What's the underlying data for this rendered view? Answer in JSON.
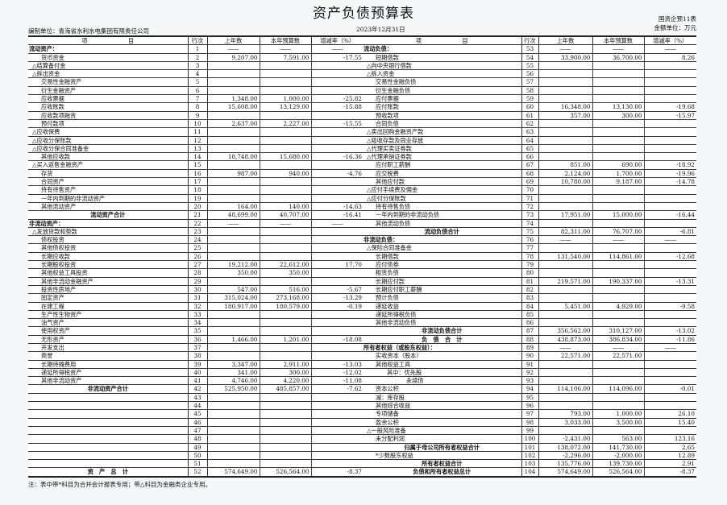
{
  "title": "资产负债预算表",
  "org": "编制单位：青海省水利水电集团有限责任公司",
  "date": "2023年12月31日",
  "form_no": "国资企预11表",
  "amount_unit": "金额单位：万元",
  "headers": {
    "item": "项　　　　　　　目",
    "line": "行次",
    "prev": "上年数",
    "budget": "本年预算数",
    "rate": "增减率（%）"
  },
  "dash": "——",
  "left_rows": [
    {
      "k": "h",
      "label": "流动资产：",
      "no": "1",
      "dash": true
    },
    {
      "k": "i2",
      "label": "货币资金",
      "no": "2",
      "prev": "9,207.00",
      "budget": "7,591.00",
      "rate": "-17.55"
    },
    {
      "k": "i1",
      "label": "△结算备付金",
      "no": "3"
    },
    {
      "k": "i1",
      "label": "△拆出资金",
      "no": "4"
    },
    {
      "k": "i2",
      "label": "交易性金融资产",
      "no": "5"
    },
    {
      "k": "i2",
      "label": "衍生金融资产",
      "no": "6"
    },
    {
      "k": "i2",
      "label": "应收票据",
      "no": "7",
      "prev": "1,348.00",
      "budget": "1,000.00",
      "rate": "-25.82"
    },
    {
      "k": "i2",
      "label": "应收账款",
      "no": "8",
      "prev": "15,608.00",
      "budget": "13,129.00",
      "rate": "-15.88"
    },
    {
      "k": "i2",
      "label": "应收款项融资",
      "no": "9"
    },
    {
      "k": "i2",
      "label": "预付款项",
      "no": "10",
      "prev": "2,637.00",
      "budget": "2,227.00",
      "rate": "-15.55"
    },
    {
      "k": "i1",
      "label": "△应收保费",
      "no": "11"
    },
    {
      "k": "i1",
      "label": "△应收分保账款",
      "no": "12"
    },
    {
      "k": "i1",
      "label": "△应收分保合同准备金",
      "no": "13"
    },
    {
      "k": "i2",
      "label": "其他应收款",
      "no": "14",
      "prev": "18,748.00",
      "budget": "15,680.00",
      "rate": "-16.36"
    },
    {
      "k": "i1",
      "label": "△买入返售金融资产",
      "no": "15"
    },
    {
      "k": "i2",
      "label": "存货",
      "no": "16",
      "prev": "987.00",
      "budget": "940.00",
      "rate": "-4.76"
    },
    {
      "k": "i2",
      "label": "合同资产",
      "no": "17"
    },
    {
      "k": "i2",
      "label": "持有待售资产",
      "no": "18"
    },
    {
      "k": "i2",
      "label": "一年内到期的非流动资产",
      "no": "19"
    },
    {
      "k": "i2",
      "label": "其他流动资产",
      "no": "20",
      "prev": "164.00",
      "budget": "140.00",
      "rate": "-14.63"
    },
    {
      "k": "t",
      "label": "流动资产合计",
      "no": "21",
      "prev": "48,699.00",
      "budget": "40,707.00",
      "rate": "-16.41"
    },
    {
      "k": "h",
      "label": "非流动资产：",
      "no": "22",
      "dash": true
    },
    {
      "k": "i1",
      "label": "△发放贷款和垫款",
      "no": "23"
    },
    {
      "k": "i2",
      "label": "债权投资",
      "no": "24"
    },
    {
      "k": "i2",
      "label": "其他债权投资",
      "no": "25"
    },
    {
      "k": "i2",
      "label": "长期应收款",
      "no": "26"
    },
    {
      "k": "i2",
      "label": "长期股权投资",
      "no": "27",
      "prev": "19,212.00",
      "budget": "22,612.00",
      "rate": "17.70"
    },
    {
      "k": "i2",
      "label": "其他权益工具投资",
      "no": "28",
      "prev": "350.00",
      "budget": "350.00"
    },
    {
      "k": "i2",
      "label": "其他非流动金融资产",
      "no": "29"
    },
    {
      "k": "i2",
      "label": "投资性房地产",
      "no": "30",
      "prev": "547.00",
      "budget": "516.00",
      "rate": "-5.67"
    },
    {
      "k": "i2",
      "label": "固定资产",
      "no": "31",
      "prev": "315,024.00",
      "budget": "273,168.00",
      "rate": "-13.29"
    },
    {
      "k": "i2",
      "label": "在建工程",
      "no": "32",
      "prev": "180,917.00",
      "budget": "180,579.00",
      "rate": "-0.19"
    },
    {
      "k": "i2",
      "label": "生产性生物资产",
      "no": "33"
    },
    {
      "k": "i2",
      "label": "油气资产",
      "no": "34"
    },
    {
      "k": "i2",
      "label": "使用权资产",
      "no": "35"
    },
    {
      "k": "i2",
      "label": "无形资产",
      "no": "36",
      "prev": "1,466.00",
      "budget": "1,201.00",
      "rate": "-18.08"
    },
    {
      "k": "i2",
      "label": "开发支出",
      "no": "37"
    },
    {
      "k": "i2",
      "label": "商誉",
      "no": "38"
    },
    {
      "k": "i2",
      "label": "长期待摊费用",
      "no": "39",
      "prev": "3,347.00",
      "budget": "2,911.00",
      "rate": "-13.03"
    },
    {
      "k": "i2",
      "label": "递延所得税资产",
      "no": "40",
      "prev": "341.00",
      "budget": "300.00",
      "rate": "-12.02"
    },
    {
      "k": "i2",
      "label": "其他非流动资产",
      "no": "41",
      "prev": "4,746.00",
      "budget": "4,220.00",
      "rate": "-11.08"
    },
    {
      "k": "t",
      "label": "非流动资产合计",
      "no": "42",
      "prev": "525,950.00",
      "budget": "485,857.00",
      "rate": "-7.62"
    },
    {
      "k": "i2",
      "label": "",
      "no": "43"
    },
    {
      "k": "i2",
      "label": "",
      "no": "44"
    },
    {
      "k": "i2",
      "label": "",
      "no": "45"
    },
    {
      "k": "i2",
      "label": "",
      "no": "46"
    },
    {
      "k": "i2",
      "label": "",
      "no": "47"
    },
    {
      "k": "i2",
      "label": "",
      "no": "48"
    },
    {
      "k": "i2",
      "label": "",
      "no": "49"
    },
    {
      "k": "i2",
      "label": "",
      "no": "50"
    },
    {
      "k": "i2",
      "label": "",
      "no": "51"
    },
    {
      "k": "t",
      "label": "资　产　总　计",
      "no": "52",
      "prev": "574,649.00",
      "budget": "526,564.00",
      "rate": "-8.37"
    }
  ],
  "right_rows": [
    {
      "k": "h",
      "label": "流动负债：",
      "no": "53",
      "dash": true
    },
    {
      "k": "i2",
      "label": "短期借款",
      "no": "54",
      "prev": "33,900.00",
      "budget": "36,700.00",
      "rate": "8.26"
    },
    {
      "k": "i1",
      "label": "△向中央银行借款",
      "no": "55"
    },
    {
      "k": "i1",
      "label": "△拆入资金",
      "no": "56"
    },
    {
      "k": "i2",
      "label": "交易性金融负债",
      "no": "57"
    },
    {
      "k": "i2",
      "label": "衍生金融负债",
      "no": "58"
    },
    {
      "k": "i2",
      "label": "应付票据",
      "no": "59"
    },
    {
      "k": "i2",
      "label": "应付账款",
      "no": "60",
      "prev": "16,348.00",
      "budget": "13,130.00",
      "rate": "-19.68"
    },
    {
      "k": "i2",
      "label": "预收款项",
      "no": "61",
      "prev": "357.00",
      "budget": "300.00",
      "rate": "-15.97"
    },
    {
      "k": "i2",
      "label": "合同负债",
      "no": "62"
    },
    {
      "k": "i1",
      "label": "△卖出回购金融资产款",
      "no": "63"
    },
    {
      "k": "i1",
      "label": "△吸收存款及同业存放",
      "no": "64"
    },
    {
      "k": "i1",
      "label": "△代理买卖证券款",
      "no": "65"
    },
    {
      "k": "i1",
      "label": "△代理承销证券款",
      "no": "66"
    },
    {
      "k": "i2",
      "label": "应付职工薪酬",
      "no": "67",
      "prev": "851.00",
      "budget": "690.00",
      "rate": "-18.92"
    },
    {
      "k": "i2",
      "label": "应交税费",
      "no": "68",
      "prev": "2,124.00",
      "budget": "1,700.00",
      "rate": "-19.96"
    },
    {
      "k": "i2",
      "label": "其他应付款",
      "no": "69",
      "prev": "10,780.00",
      "budget": "9,187.00",
      "rate": "-14.78"
    },
    {
      "k": "i1",
      "label": "△应付手续费及佣金",
      "no": "70"
    },
    {
      "k": "i1",
      "label": "△应付分保账款",
      "no": "71"
    },
    {
      "k": "i2",
      "label": "持有待售负债",
      "no": "72"
    },
    {
      "k": "i2",
      "label": "一年内到期的非流动负债",
      "no": "73",
      "prev": "17,951.00",
      "budget": "15,000.00",
      "rate": "-16.44"
    },
    {
      "k": "i2",
      "label": "其他流动负债",
      "no": "74"
    },
    {
      "k": "t",
      "label": "流动负债合计",
      "no": "75",
      "prev": "82,311.00",
      "budget": "76,707.00",
      "rate": "-6.81"
    },
    {
      "k": "h",
      "label": "非流动负债：",
      "no": "76",
      "dash": true
    },
    {
      "k": "i1",
      "label": "△保险合同准备金",
      "no": "77"
    },
    {
      "k": "i2",
      "label": "长期借款",
      "no": "78",
      "prev": "131,540.00",
      "budget": "114,861.00",
      "rate": "-12.68"
    },
    {
      "k": "i2",
      "label": "应付债券",
      "no": "79"
    },
    {
      "k": "i2",
      "label": "租赁负债",
      "no": "80"
    },
    {
      "k": "i2",
      "label": "长期应付款",
      "no": "81",
      "prev": "219,571.00",
      "budget": "190,337.00",
      "rate": "-13.31"
    },
    {
      "k": "i2",
      "label": "长期应付职工薪酬",
      "no": "82"
    },
    {
      "k": "i2",
      "label": "预计负债",
      "no": "83"
    },
    {
      "k": "i2",
      "label": "递延收益",
      "no": "84",
      "prev": "5,451.00",
      "budget": "4,929.00",
      "rate": "-9.58"
    },
    {
      "k": "i2",
      "label": "递延所得税负债",
      "no": "85"
    },
    {
      "k": "i2",
      "label": "其他非流动负债",
      "no": "86"
    },
    {
      "k": "t",
      "label": "非流动负债合计",
      "no": "87",
      "prev": "356,562.00",
      "budget": "310,127.00",
      "rate": "-13.02"
    },
    {
      "k": "t",
      "label": "负　债　合　计",
      "no": "88",
      "prev": "438,873.00",
      "budget": "386,834.00",
      "rate": "-11.86"
    },
    {
      "k": "h",
      "label": "所有者权益（或股东权益）：",
      "no": "89",
      "dash": true
    },
    {
      "k": "i2",
      "label": "实收资本（股本）",
      "no": "90",
      "prev": "22,571.00",
      "budget": "22,571.00"
    },
    {
      "k": "i2",
      "label": "其他权益工具",
      "no": "91"
    },
    {
      "k": "i3",
      "label": "其中：优先股",
      "no": "92"
    },
    {
      "k": "i4",
      "label": "永续债",
      "no": "93"
    },
    {
      "k": "i2",
      "label": "资本公积",
      "no": "94",
      "prev": "114,106.00",
      "budget": "114,096.00",
      "rate": "-0.01"
    },
    {
      "k": "i2",
      "label": "减：库存股",
      "no": "95"
    },
    {
      "k": "i2",
      "label": "其他综合收益",
      "no": "96"
    },
    {
      "k": "i2",
      "label": "专项储备",
      "no": "97",
      "prev": "793.00",
      "budget": "1,000.00",
      "rate": "26.10"
    },
    {
      "k": "i2",
      "label": "盈余公积",
      "no": "98",
      "prev": "3,033.00",
      "budget": "3,500.00",
      "rate": "15.40"
    },
    {
      "k": "i1",
      "label": "△一般风险准备",
      "no": "99"
    },
    {
      "k": "i2",
      "label": "未分配利润",
      "no": "100",
      "prev": "-2,431.00",
      "budget": "563.00",
      "rate": "123.16"
    },
    {
      "k": "t",
      "label": "归属于母公司所有者权益合计",
      "no": "101",
      "prev": "138,072.00",
      "budget": "141,730.00",
      "rate": "2.65"
    },
    {
      "k": "i2",
      "label": "*少数股东权益",
      "no": "102",
      "prev": "-2,296.00",
      "budget": "-2,000.00",
      "rate": "12.89"
    },
    {
      "k": "t",
      "label": "所有者权益合计",
      "no": "103",
      "prev": "135,776.00",
      "budget": "139,730.00",
      "rate": "2.91"
    },
    {
      "k": "t",
      "label": "负债和所有者权益总计",
      "no": "104",
      "prev": "574,649.00",
      "budget": "526,564.00",
      "rate": "-8.37"
    }
  ],
  "footnote": "注：表中带*科目为合并会计报表专用；带△科目为金融类企业专用。"
}
